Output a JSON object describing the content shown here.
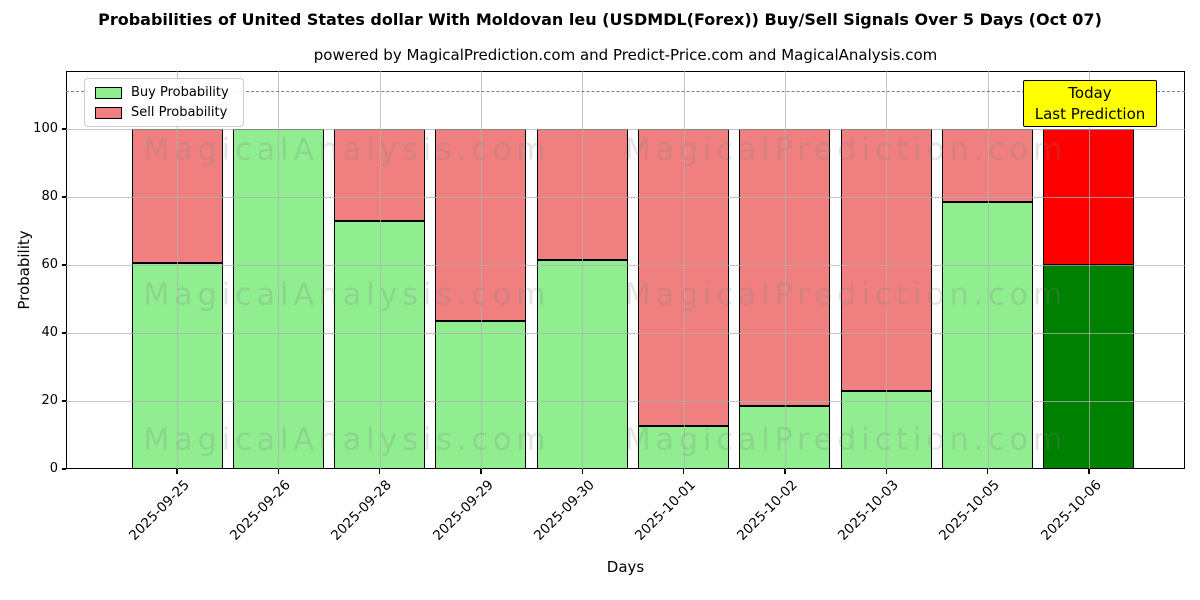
{
  "annotation": {
    "line1": "Today",
    "line2": "Last Prediction",
    "bg_color": "#FFFF00",
    "border_color": "#000000"
  },
  "legend": [
    {
      "label": "Buy Probability",
      "color": "#90EE90"
    },
    {
      "label": "Sell Probability",
      "color": "#F08080"
    }
  ],
  "colors": {
    "buy": "#90EE90",
    "sell": "#F08080",
    "today_buy": "#008000",
    "today_sell": "#FF0000",
    "bar_edge": "#000000",
    "grid": "#B0B0B0",
    "dashed_line": "#808080",
    "watermark": "#808080"
  },
  "watermarks": {
    "left_text": "MagicalAnalysis.com",
    "right_text": "MagicalPrediction.com"
  },
  "chart_data": {
    "type": "bar",
    "stacked": true,
    "title": "Probabilities of United States dollar With Moldovan leu (USDMDL(Forex)) Buy/Sell Signals Over 5 Days (Oct 07)",
    "subtitle": "powered by MagicalPrediction.com and Predict-Price.com and MagicalAnalysis.com",
    "xlabel": "Days",
    "ylabel": "Probability",
    "categories": [
      "2025-09-25",
      "2025-09-26",
      "2025-09-28",
      "2025-09-29",
      "2025-09-30",
      "2025-10-01",
      "2025-10-02",
      "2025-10-03",
      "2025-10-05",
      "2025-10-06"
    ],
    "series": [
      {
        "name": "Buy Probability",
        "values": [
          60.5,
          100,
          73,
          43.5,
          61.5,
          12.5,
          18.5,
          23,
          78.5,
          60
        ]
      },
      {
        "name": "Sell Probability",
        "values": [
          39.5,
          0,
          27,
          56.5,
          38.5,
          87.5,
          81.5,
          77,
          21.5,
          40
        ]
      }
    ],
    "yticks": [
      0,
      20,
      40,
      60,
      80,
      100
    ],
    "ylim": [
      0,
      117
    ],
    "dashed_line_y": 111,
    "grid": true,
    "legend_position": "upper left",
    "last_bar_highlight": {
      "buy_color": "#008000",
      "sell_color": "#FF0000",
      "note": "Today / Last Prediction"
    }
  }
}
